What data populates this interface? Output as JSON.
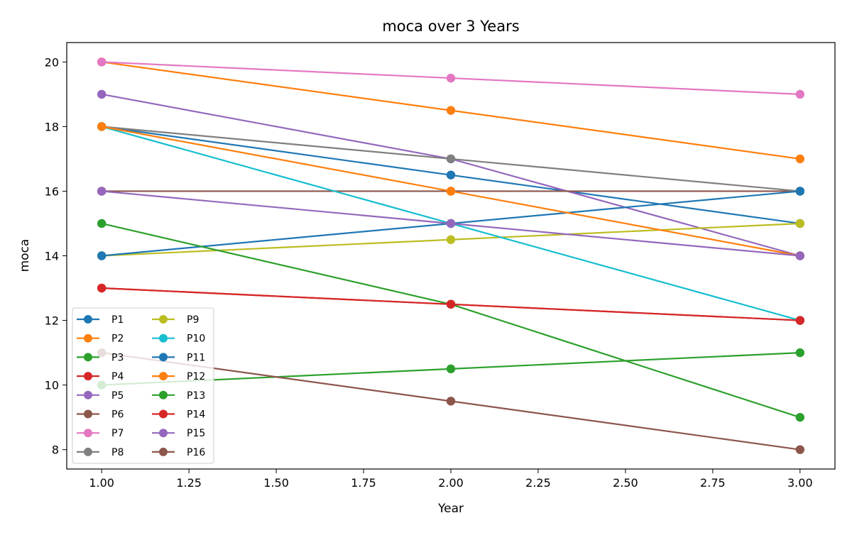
{
  "chart_data": {
    "type": "line",
    "title": "moca over 3 Years",
    "xlabel": "Year",
    "ylabel": "moca",
    "xlim": [
      0.9,
      3.1
    ],
    "ylim": [
      7.4,
      20.6
    ],
    "x": [
      1,
      2,
      3
    ],
    "xticks": [
      1.0,
      1.25,
      1.5,
      1.75,
      2.0,
      2.25,
      2.5,
      2.75,
      3.0
    ],
    "xtick_labels": [
      "1.00",
      "1.25",
      "1.50",
      "1.75",
      "2.00",
      "2.25",
      "2.50",
      "2.75",
      "3.00"
    ],
    "yticks": [
      8,
      10,
      12,
      14,
      16,
      18,
      20
    ],
    "ytick_labels": [
      "8",
      "10",
      "12",
      "14",
      "16",
      "18",
      "20"
    ],
    "grid": false,
    "legend_position": "lower-left",
    "legend_columns": 2,
    "series": [
      {
        "name": "P1",
        "color": "#1f77b4",
        "values": [
          18,
          16.5,
          15
        ]
      },
      {
        "name": "P2",
        "color": "#ff7f0e",
        "values": [
          20,
          18.5,
          17
        ]
      },
      {
        "name": "P3",
        "color": "#2ca02c",
        "values": [
          10,
          10.5,
          11
        ]
      },
      {
        "name": "P4",
        "color": "#d62728",
        "values": [
          13,
          12.5,
          12
        ]
      },
      {
        "name": "P5",
        "color": "#9467bd",
        "values": [
          19,
          17,
          14
        ]
      },
      {
        "name": "P6",
        "color": "#8c564b",
        "values": [
          16,
          16,
          16
        ]
      },
      {
        "name": "P7",
        "color": "#e377c2",
        "values": [
          20,
          19.5,
          19
        ]
      },
      {
        "name": "P8",
        "color": "#7f7f7f",
        "values": [
          18,
          17,
          16
        ]
      },
      {
        "name": "P9",
        "color": "#bcbd22",
        "values": [
          14,
          14.5,
          15
        ]
      },
      {
        "name": "P10",
        "color": "#17becf",
        "values": [
          18,
          15,
          12
        ]
      },
      {
        "name": "P11",
        "color": "#1f77b4",
        "values": [
          14,
          15,
          16
        ]
      },
      {
        "name": "P12",
        "color": "#ff7f0e",
        "values": [
          18,
          16,
          14
        ]
      },
      {
        "name": "P13",
        "color": "#2ca02c",
        "values": [
          15,
          12.5,
          9
        ]
      },
      {
        "name": "P14",
        "color": "#d62728",
        "values": [
          13,
          12.5,
          12
        ]
      },
      {
        "name": "P15",
        "color": "#9467bd",
        "values": [
          16,
          15,
          14
        ]
      },
      {
        "name": "P16",
        "color": "#8c564b",
        "values": [
          11,
          9.5,
          8
        ]
      }
    ]
  }
}
